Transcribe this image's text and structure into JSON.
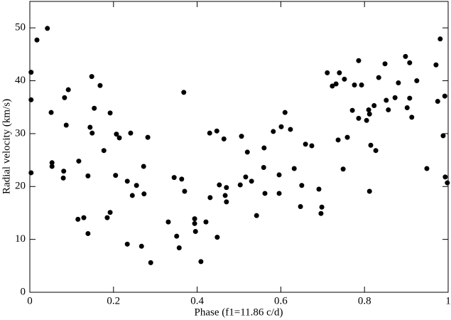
{
  "chart_data": {
    "type": "scatter",
    "xlabel": "Phase (f1=11.86 c/d)",
    "ylabel": "Radial velocity  (km/s)",
    "color": "#000000",
    "xlim": [
      0,
      1
    ],
    "ylim": [
      0,
      55
    ],
    "xticks": [
      0,
      0.2,
      0.4,
      0.6,
      0.8,
      1
    ],
    "yticks": [
      0,
      10,
      20,
      30,
      40,
      50
    ],
    "x": [
      0.003,
      0.003,
      0.003,
      0.017,
      0.042,
      0.051,
      0.053,
      0.053,
      0.081,
      0.08,
      0.083,
      0.092,
      0.087,
      0.115,
      0.117,
      0.129,
      0.139,
      0.139,
      0.144,
      0.148,
      0.149,
      0.154,
      0.168,
      0.177,
      0.185,
      0.192,
      0.192,
      0.205,
      0.207,
      0.214,
      0.233,
      0.233,
      0.241,
      0.245,
      0.255,
      0.267,
      0.272,
      0.273,
      0.282,
      0.289,
      0.331,
      0.345,
      0.351,
      0.357,
      0.363,
      0.368,
      0.37,
      0.394,
      0.394,
      0.396,
      0.409,
      0.421,
      0.43,
      0.431,
      0.447,
      0.448,
      0.453,
      0.464,
      0.467,
      0.47,
      0.47,
      0.503,
      0.506,
      0.516,
      0.52,
      0.53,
      0.542,
      0.559,
      0.56,
      0.562,
      0.582,
      0.596,
      0.596,
      0.601,
      0.61,
      0.623,
      0.632,
      0.647,
      0.65,
      0.659,
      0.674,
      0.691,
      0.696,
      0.698,
      0.711,
      0.723,
      0.732,
      0.737,
      0.74,
      0.749,
      0.752,
      0.759,
      0.771,
      0.776,
      0.786,
      0.786,
      0.793,
      0.805,
      0.81,
      0.812,
      0.812,
      0.815,
      0.823,
      0.827,
      0.834,
      0.849,
      0.852,
      0.857,
      0.873,
      0.881,
      0.898,
      0.902,
      0.908,
      0.908,
      0.913,
      0.925,
      0.949,
      0.971,
      0.975,
      0.981,
      0.988,
      0.992,
      0.993,
      0.998
    ],
    "values": [
      41.6,
      36.4,
      22.6,
      47.7,
      49.9,
      34.0,
      24.5,
      23.8,
      22.9,
      21.6,
      36.8,
      38.3,
      31.6,
      13.8,
      24.8,
      14.1,
      11.1,
      22.0,
      31.2,
      40.8,
      30.1,
      34.8,
      39.1,
      26.8,
      14.1,
      15.1,
      33.9,
      22.1,
      29.9,
      29.2,
      9.1,
      21.0,
      30.1,
      18.3,
      20.2,
      8.7,
      23.8,
      18.6,
      29.3,
      5.6,
      13.3,
      21.7,
      10.6,
      8.4,
      21.4,
      37.8,
      19.1,
      13.9,
      13.0,
      11.5,
      5.8,
      13.3,
      30.1,
      17.9,
      30.5,
      10.4,
      20.3,
      29.0,
      18.3,
      19.8,
      17.1,
      20.3,
      29.5,
      21.8,
      26.5,
      21.0,
      14.5,
      23.6,
      27.3,
      18.7,
      30.4,
      18.7,
      22.2,
      31.3,
      34.0,
      30.8,
      23.4,
      16.2,
      20.2,
      28.0,
      27.7,
      19.5,
      14.9,
      16.1,
      41.5,
      39.0,
      39.4,
      28.8,
      41.5,
      23.3,
      40.3,
      29.3,
      34.4,
      39.2,
      43.8,
      32.9,
      39.2,
      32.5,
      34.5,
      33.7,
      19.1,
      27.8,
      35.3,
      26.8,
      40.6,
      43.2,
      36.3,
      34.5,
      36.8,
      39.6,
      44.6,
      34.9,
      43.4,
      36.7,
      33.1,
      40.0,
      23.4,
      43.0,
      36.1,
      47.9,
      29.6,
      37.1,
      21.8,
      20.7
    ]
  }
}
